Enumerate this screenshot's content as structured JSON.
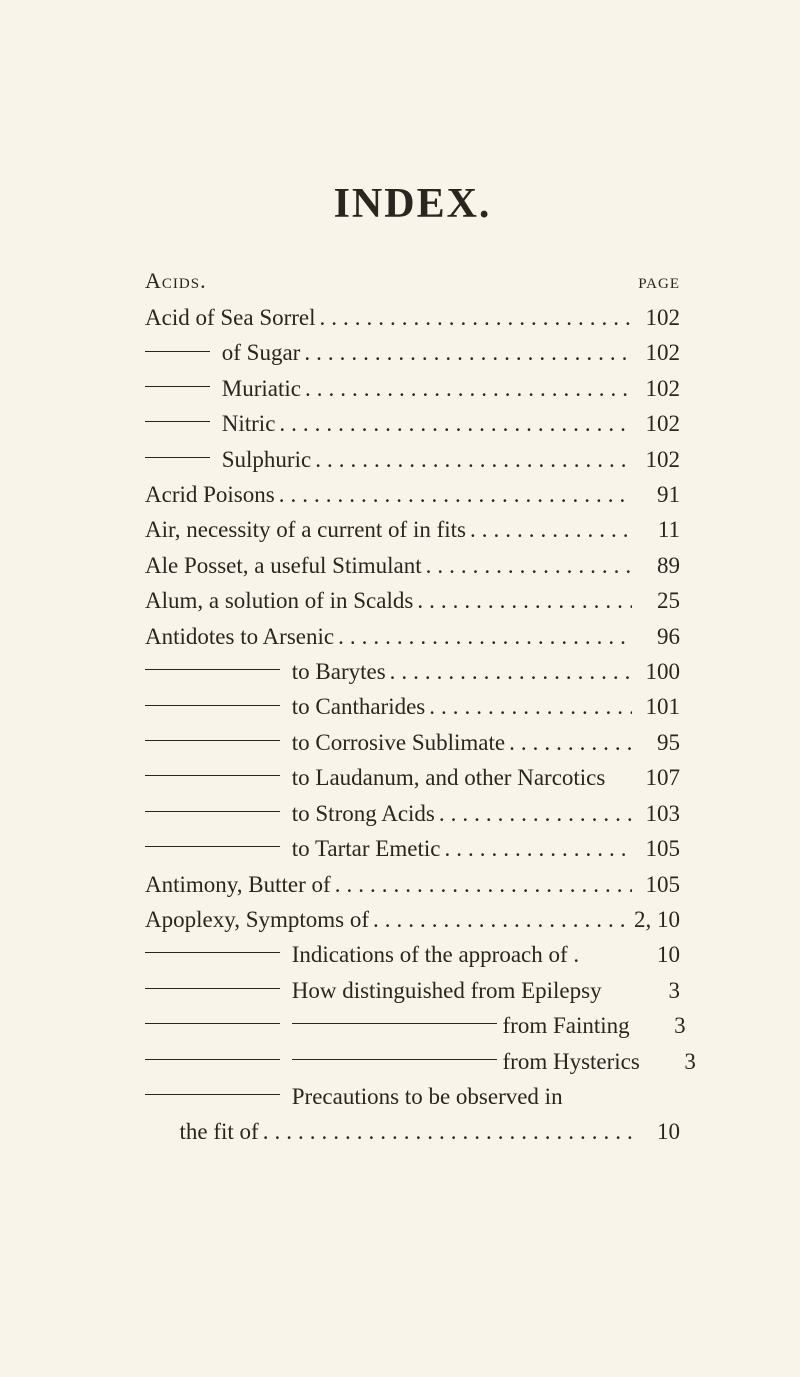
{
  "title": "INDEX.",
  "header": {
    "left": "Acids.",
    "right": "page"
  },
  "leader_char": ".",
  "entries": [
    {
      "segments": [
        {
          "text": "Acid of Sea Sorrel"
        }
      ],
      "page": "102"
    },
    {
      "segments": [
        {
          "dash": "dash-short"
        },
        {
          "text": " of Sugar"
        }
      ],
      "page": "102"
    },
    {
      "segments": [
        {
          "dash": "dash-short"
        },
        {
          "text": " Muriatic"
        }
      ],
      "page": "102"
    },
    {
      "segments": [
        {
          "dash": "dash-short"
        },
        {
          "text": " Nitric"
        }
      ],
      "page": "102"
    },
    {
      "segments": [
        {
          "dash": "dash-short"
        },
        {
          "text": " Sulphuric"
        }
      ],
      "page": "102"
    },
    {
      "segments": [
        {
          "text": "Acrid Poisons"
        }
      ],
      "page": "91"
    },
    {
      "segments": [
        {
          "text": "Air, necessity of a current of in fits"
        }
      ],
      "page": "11"
    },
    {
      "segments": [
        {
          "text": "Ale Posset, a useful Stimulant"
        }
      ],
      "page": "89"
    },
    {
      "segments": [
        {
          "text": "Alum, a solution of in Scalds"
        }
      ],
      "page": "25"
    },
    {
      "segments": [
        {
          "text": "Antidotes to Arsenic"
        }
      ],
      "page": "96"
    },
    {
      "segments": [
        {
          "dash": "dash-long"
        },
        {
          "text": " to Barytes"
        }
      ],
      "page": "100"
    },
    {
      "segments": [
        {
          "dash": "dash-long"
        },
        {
          "text": " to Cantharides"
        }
      ],
      "page": "101"
    },
    {
      "segments": [
        {
          "dash": "dash-long"
        },
        {
          "text": " to Corrosive Sublimate"
        }
      ],
      "page": "95"
    },
    {
      "segments": [
        {
          "dash": "dash-long"
        },
        {
          "text": " to Laudanum, and other Narcotics"
        }
      ],
      "page": "107",
      "no_leader": true
    },
    {
      "segments": [
        {
          "dash": "dash-long"
        },
        {
          "text": " to Strong Acids"
        }
      ],
      "page": "103"
    },
    {
      "segments": [
        {
          "dash": "dash-long"
        },
        {
          "text": " to Tartar Emetic"
        }
      ],
      "page": "105"
    },
    {
      "segments": [
        {
          "text": "Antimony, Butter of"
        }
      ],
      "page": "105"
    },
    {
      "segments": [
        {
          "text": "Apoplexy, Symptoms of"
        }
      ],
      "page": "2, 10"
    },
    {
      "segments": [
        {
          "dash": "dash-gap"
        },
        {
          "text": " Indications of the approach of ."
        }
      ],
      "page": "10",
      "no_leader": true
    },
    {
      "segments": [
        {
          "dash": "dash-gap"
        },
        {
          "text": " How distinguished from Epilepsy"
        }
      ],
      "page": "3",
      "no_leader": true
    },
    {
      "segments": [
        {
          "dash": "dash-gap"
        },
        {
          "text": " "
        },
        {
          "dash": "dash-205"
        },
        {
          "text": " from Fainting"
        }
      ],
      "page": "3",
      "no_leader": true
    },
    {
      "segments": [
        {
          "dash": "dash-gap"
        },
        {
          "text": " "
        },
        {
          "dash": "dash-205"
        },
        {
          "text": " from Hysterics"
        }
      ],
      "page": "3",
      "no_leader": true
    },
    {
      "segments": [
        {
          "dash": "dash-gap"
        },
        {
          "text": " Precautions to be observed in"
        }
      ],
      "page": "",
      "no_leader": true
    },
    {
      "segments": [
        {
          "text": "      the fit of"
        }
      ],
      "page": "10",
      "indent": true
    }
  ]
}
